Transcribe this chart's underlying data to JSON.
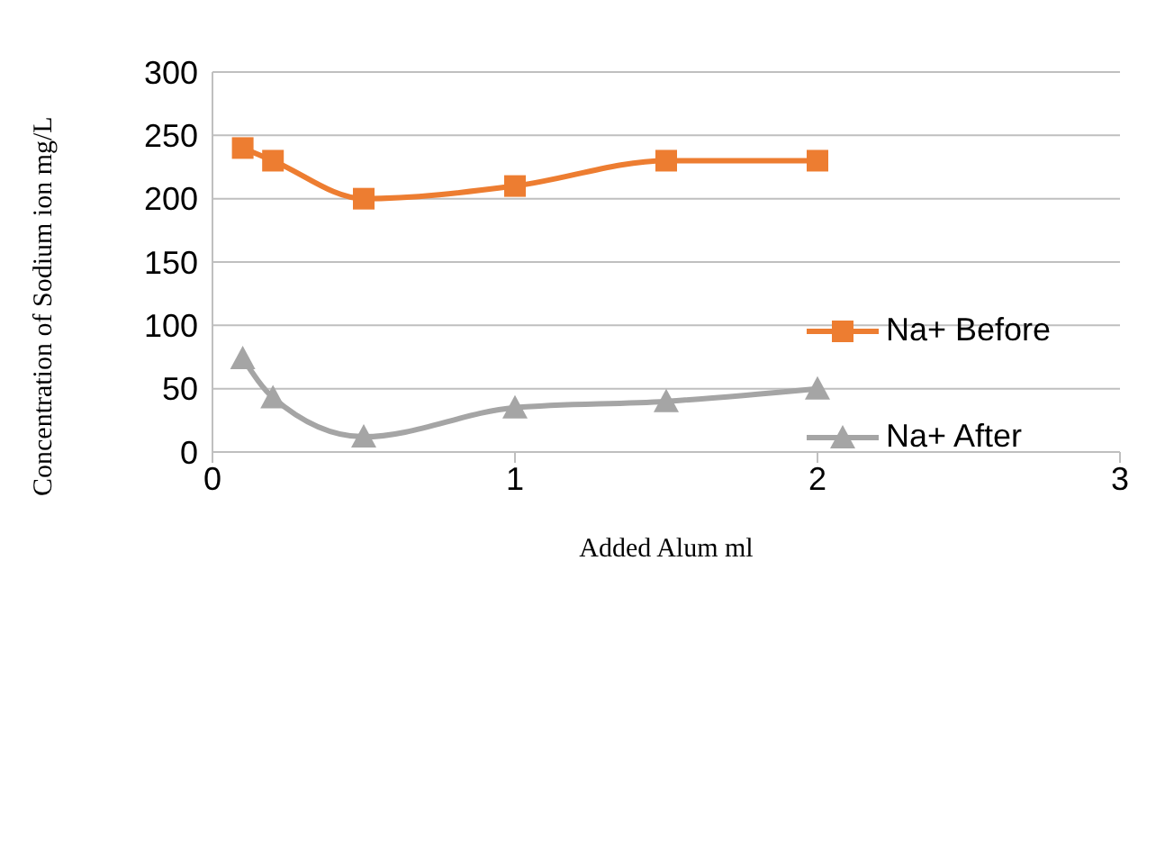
{
  "chart_data": {
    "type": "line",
    "xlabel": "Added Alum ml",
    "ylabel": "Concentration of Sodium ion mg/L",
    "x": [
      0.1,
      0.2,
      0.5,
      1,
      1.5,
      2
    ],
    "series": [
      {
        "name": "Na+ Before",
        "color": "#ed7d31",
        "marker": "square",
        "values": [
          240,
          230,
          200,
          210,
          230,
          230
        ]
      },
      {
        "name": "Na+ After",
        "color": "#a5a5a5",
        "marker": "triangle",
        "values": [
          74,
          43,
          12,
          35,
          40,
          50
        ]
      }
    ],
    "xlim": [
      0,
      3
    ],
    "xticks": [
      0,
      1,
      2,
      3
    ],
    "ylim": [
      0,
      300
    ],
    "yticks": [
      0,
      50,
      100,
      150,
      200,
      250,
      300
    ],
    "grid": "y",
    "legend": "right"
  }
}
